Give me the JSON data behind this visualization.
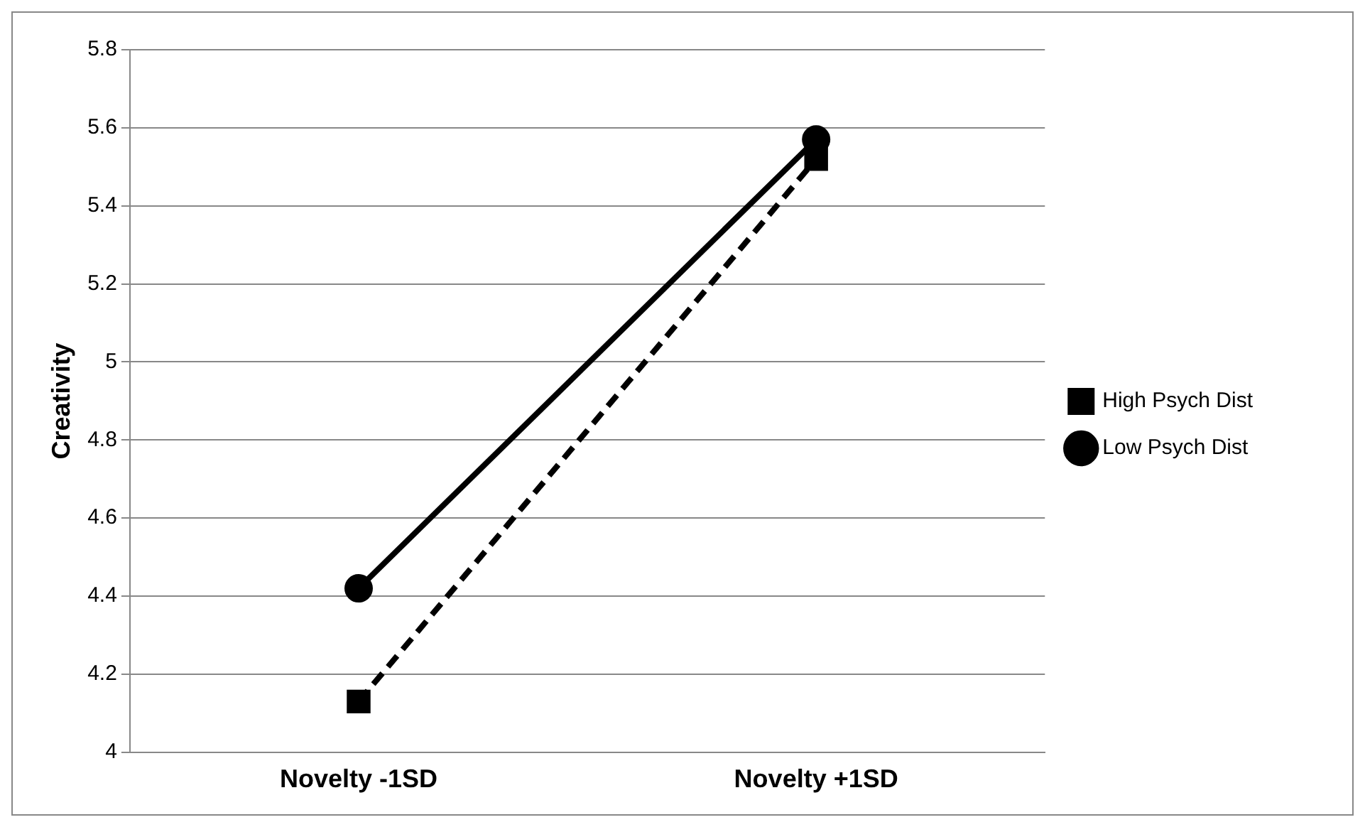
{
  "chart_data": {
    "type": "line",
    "ylabel": "Creativity",
    "categories": [
      "Novelty -1SD",
      "Novelty +1SD"
    ],
    "series": [
      {
        "name": "High Psych Dist",
        "color": "#000000",
        "values": [
          4.13,
          5.52
        ],
        "marker": "square",
        "line_style": "dashed"
      },
      {
        "name": "Low Psych Dist",
        "color": "#000000",
        "values": [
          4.42,
          5.57
        ],
        "marker": "circle",
        "line_style": "solid"
      }
    ],
    "ylim": [
      4,
      5.8
    ],
    "yticks": [
      4,
      4.2,
      4.4,
      4.6,
      4.8,
      5,
      5.2,
      5.4,
      5.6,
      5.8
    ],
    "grid": "y",
    "legend": "right"
  }
}
